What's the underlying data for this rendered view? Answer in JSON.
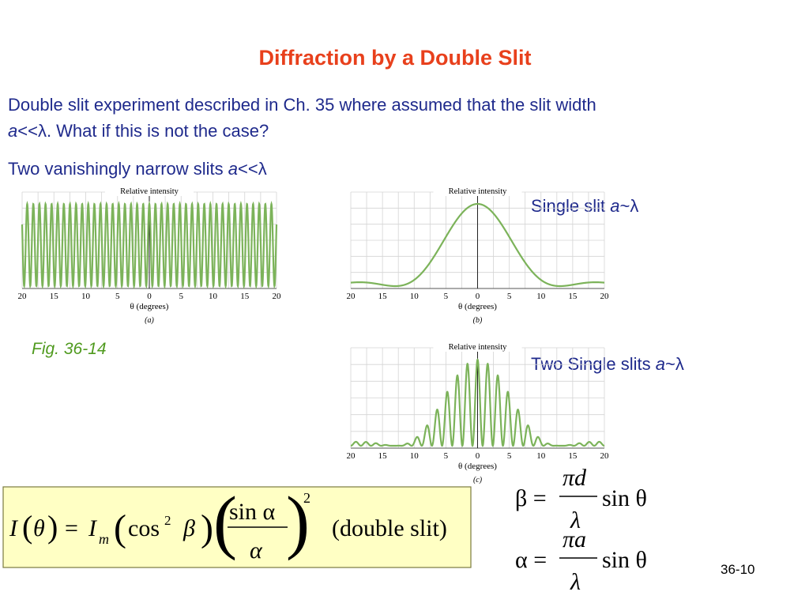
{
  "title": "Diffraction by a Double Slit",
  "intro": {
    "line1": "Double slit experiment described in Ch. 35 where assumed that the slit width",
    "a": "a",
    "rest": "<<λ. What if this is not the case?"
  },
  "narrow": {
    "text": "Two vanishingly narrow slits ",
    "a": "a",
    "rest": "<<λ"
  },
  "fig_label": "Fig. 36-14",
  "single_label": {
    "text": "Single slit ",
    "a": "a",
    "rest": "~λ"
  },
  "two_label": {
    "text": "Two Single slits ",
    "a": "a",
    "rest": "~λ"
  },
  "figures": [
    {
      "ylabel": "Relative intensity",
      "xticks": [
        "20",
        "15",
        "10",
        "5",
        "0",
        "5",
        "10",
        "15",
        "20"
      ],
      "xlabel": "θ (degrees)",
      "caption": "(a)"
    },
    {
      "ylabel": "Relative intensity",
      "xticks": [
        "20",
        "15",
        "10",
        "5",
        "0",
        "5",
        "10",
        "15",
        "20"
      ],
      "xlabel": "θ (degrees)",
      "caption": "(b)"
    },
    {
      "ylabel": "Relative intensity",
      "xticks": [
        "20",
        "15",
        "10",
        "5",
        "0",
        "5",
        "10",
        "15",
        "20"
      ],
      "xlabel": "θ (degrees)",
      "caption": "(c)"
    }
  ],
  "formula": {
    "I": "I",
    "theta": "θ",
    "eq": "=",
    "Im": "I",
    "m": "m",
    "cos": "cos",
    "sq": "2",
    "beta": "β",
    "num": "sin α",
    "den": "α",
    "pow": "2",
    "note": "(double slit)"
  },
  "beta_eq": {
    "lhs": "β =",
    "num": "πd",
    "den": "λ",
    "rhs": "sin θ"
  },
  "alpha_eq": {
    "lhs": "α =",
    "num": "πa",
    "den": "λ",
    "rhs": "sin θ"
  },
  "page_number": "36-10"
}
